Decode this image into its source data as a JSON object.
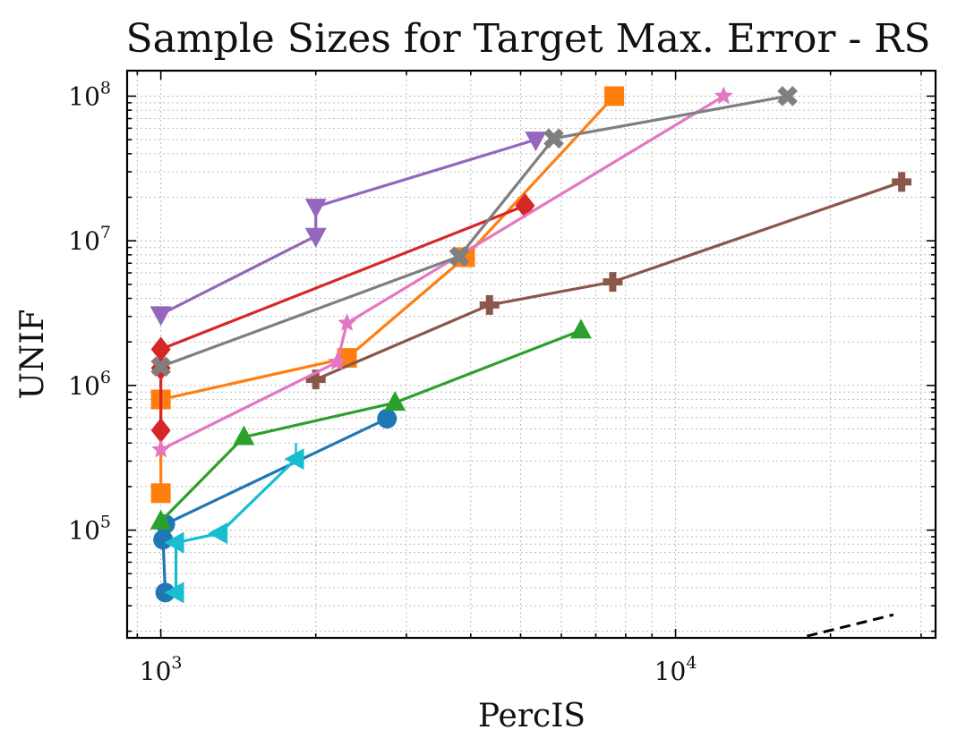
{
  "chart_data": {
    "type": "line",
    "title": "Sample Sizes for Target Max. Error - RS",
    "xlabel": "PercIS",
    "ylabel": "UNIF",
    "xscale": "log",
    "yscale": "log",
    "xlim": [
      860,
      32000
    ],
    "ylim": [
      18000,
      150000000
    ],
    "grid": true,
    "x_ticks": [
      {
        "base": "10",
        "exp": "3",
        "value": 1000
      },
      {
        "base": "10",
        "exp": "4",
        "value": 10000
      }
    ],
    "y_ticks": [
      {
        "base": "10",
        "exp": "5",
        "value": 100000
      },
      {
        "base": "10",
        "exp": "6",
        "value": 1000000
      },
      {
        "base": "10",
        "exp": "7",
        "value": 10000000
      },
      {
        "base": "10",
        "exp": "8",
        "value": 100000000
      }
    ],
    "reference_line": {
      "name": "reference",
      "style": "dashed",
      "color": "#000000",
      "points": [
        [
          18000,
          18500
        ],
        [
          26500,
          26000
        ]
      ]
    },
    "series": [
      {
        "name": "blue-circle",
        "color": "#1f77b4",
        "marker": "circle",
        "points": [
          [
            1020,
            37000
          ],
          [
            1010,
            86000
          ],
          [
            1020,
            110000
          ],
          [
            2750,
            590000
          ]
        ],
        "errors": [
          [
            0,
            0
          ],
          [
            0,
            0
          ],
          [
            0,
            0
          ],
          [
            2000,
            4000
          ]
        ]
      },
      {
        "name": "orange-square",
        "color": "#ff7f0e",
        "marker": "square",
        "points": [
          [
            1000,
            180000
          ],
          [
            1000,
            800000
          ],
          [
            2300,
            1550000
          ],
          [
            3900,
            7700000
          ],
          [
            7600,
            100000000
          ]
        ],
        "errors": [
          [
            0,
            0
          ],
          [
            0,
            0
          ],
          [
            160,
            500
          ],
          [
            0,
            0
          ],
          [
            0,
            0
          ]
        ]
      },
      {
        "name": "green-triangle-up",
        "color": "#2ca02c",
        "marker": "triangle-up",
        "points": [
          [
            1000,
            115000
          ],
          [
            1450,
            440000
          ],
          [
            2850,
            760000
          ],
          [
            6550,
            2400000
          ]
        ],
        "errors": [
          [
            0,
            0
          ],
          [
            130,
            250
          ],
          [
            0,
            0
          ],
          [
            0,
            0
          ]
        ]
      },
      {
        "name": "red-diamond",
        "color": "#d62728",
        "marker": "diamond",
        "points": [
          [
            1000,
            490000
          ],
          [
            1000,
            1320000
          ],
          [
            1000,
            1780000
          ],
          [
            5100,
            17500000
          ]
        ],
        "errors": [
          [
            0,
            0
          ],
          [
            0,
            0
          ],
          [
            0,
            0
          ],
          [
            13400,
            10000
          ]
        ]
      },
      {
        "name": "purple-triangle-down",
        "color": "#9467bd",
        "marker": "triangle-down",
        "points": [
          [
            1000,
            3100000
          ],
          [
            2000,
            10800000
          ],
          [
            2000,
            17200000
          ],
          [
            5350,
            50000000
          ]
        ],
        "errors": [
          [
            0,
            0
          ],
          [
            0,
            0
          ],
          [
            0,
            0
          ],
          [
            0,
            0
          ]
        ]
      },
      {
        "name": "brown-plus",
        "color": "#8c564b",
        "marker": "plus",
        "points": [
          [
            2000,
            1100000
          ],
          [
            4350,
            3600000
          ],
          [
            7550,
            5200000
          ],
          [
            27500,
            25500000
          ]
        ],
        "errors": [
          [
            250,
            300
          ],
          [
            0,
            0
          ],
          [
            700,
            1000
          ],
          [
            0,
            0
          ]
        ]
      },
      {
        "name": "pink-star",
        "color": "#e377c2",
        "marker": "star",
        "points": [
          [
            1000,
            360000
          ],
          [
            2200,
            1450000
          ],
          [
            2300,
            2700000
          ],
          [
            12400,
            100000000
          ]
        ],
        "errors": [
          [
            0,
            0
          ],
          [
            780,
            800
          ],
          [
            2100,
            2000
          ],
          [
            0,
            0
          ]
        ]
      },
      {
        "name": "gray-x",
        "color": "#7f7f7f",
        "marker": "x",
        "points": [
          [
            1000,
            1350000
          ],
          [
            3800,
            7800000
          ],
          [
            5800,
            51000000
          ],
          [
            16500,
            100000000
          ]
        ],
        "errors": [
          [
            0,
            0
          ],
          [
            0,
            0
          ],
          [
            25000,
            28000
          ],
          [
            0,
            0
          ]
        ]
      },
      {
        "name": "cyan-triangle-left",
        "color": "#17becf",
        "marker": "triangle-left",
        "points": [
          [
            1070,
            37000
          ],
          [
            1070,
            82000
          ],
          [
            1300,
            95000
          ],
          [
            1830,
            310000
          ]
        ],
        "errors": [
          [
            0,
            0
          ],
          [
            0,
            0
          ],
          [
            0,
            0
          ],
          [
            70,
            90000
          ]
        ]
      }
    ]
  }
}
